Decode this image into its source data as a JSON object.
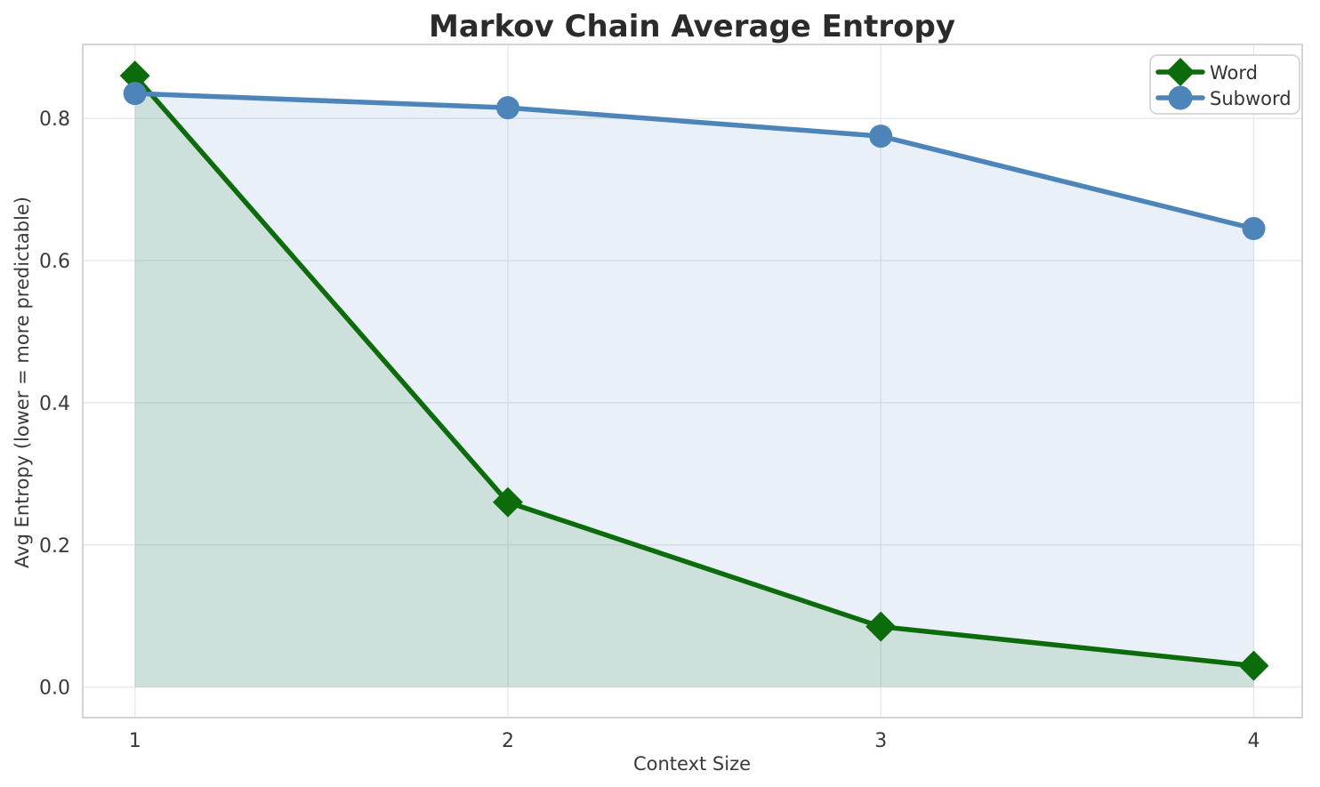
{
  "chart_data": {
    "type": "line",
    "title": "Markov Chain Average Entropy",
    "xlabel": "Context Size",
    "ylabel": "Avg Entropy (lower = more predictable)",
    "x": [
      1,
      2,
      3,
      4
    ],
    "x_tick_labels": [
      "1",
      "2",
      "3",
      "4"
    ],
    "y_tick_values": [
      0.0,
      0.2,
      0.4,
      0.6,
      0.8
    ],
    "y_tick_labels": [
      "0.0",
      "0.2",
      "0.4",
      "0.6",
      "0.8"
    ],
    "xlim": [
      0.86,
      4.13
    ],
    "ylim": [
      -0.043,
      0.904
    ],
    "grid": true,
    "legend_position": "upper right",
    "fill_alpha": 0.12,
    "series": [
      {
        "name": "Word",
        "marker": "diamond",
        "color": "#0c6c0c",
        "values": [
          0.86,
          0.26,
          0.085,
          0.03
        ]
      },
      {
        "name": "Subword",
        "marker": "circle",
        "color": "#4d84ba",
        "values": [
          0.835,
          0.815,
          0.775,
          0.645
        ]
      }
    ],
    "colors": {
      "grid": "#e9e9e9",
      "spine": "#d4d4d4",
      "tick": "#3a3a3a",
      "title": "#2b2b2b",
      "background": "#ffffff",
      "legend_border": "#cccccc",
      "legend_text": "#333333"
    }
  }
}
